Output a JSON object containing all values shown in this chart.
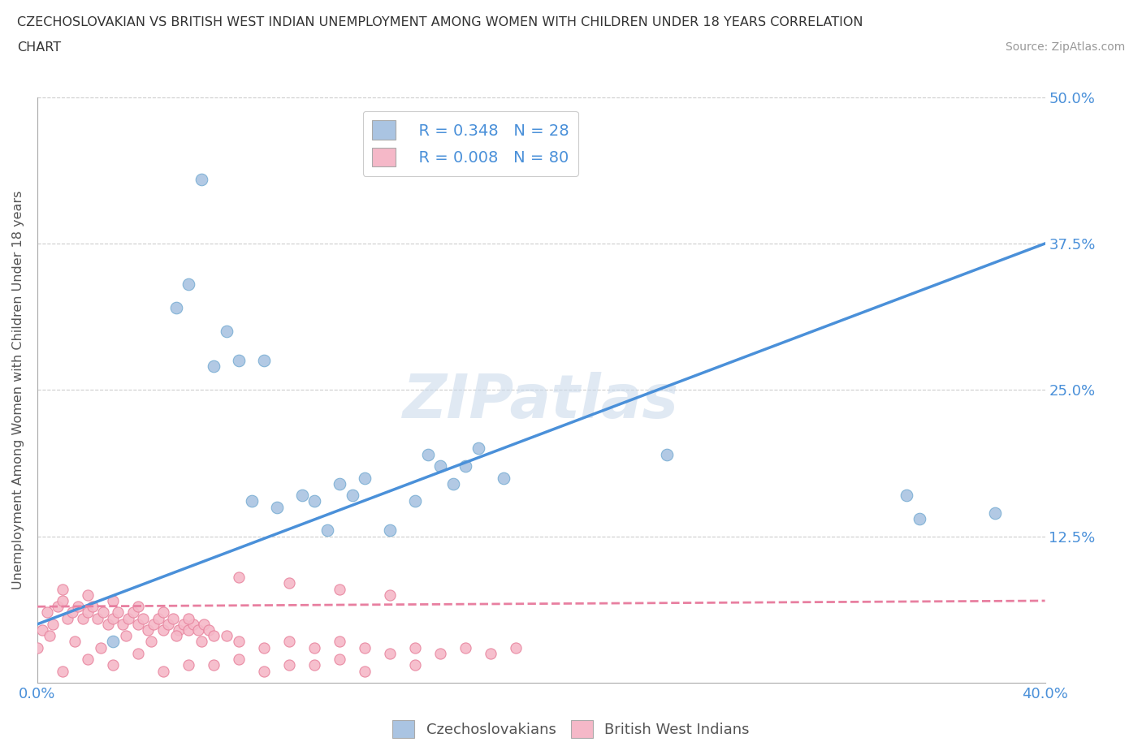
{
  "title_line1": "CZECHOSLOVAKIAN VS BRITISH WEST INDIAN UNEMPLOYMENT AMONG WOMEN WITH CHILDREN UNDER 18 YEARS CORRELATION",
  "title_line2": "CHART",
  "source": "Source: ZipAtlas.com",
  "ylabel": "Unemployment Among Women with Children Under 18 years",
  "xmin": 0.0,
  "xmax": 0.4,
  "ymin": 0.0,
  "ymax": 0.5,
  "yticks": [
    0.0,
    0.125,
    0.25,
    0.375,
    0.5
  ],
  "ytick_labels": [
    "",
    "12.5%",
    "25.0%",
    "37.5%",
    "50.0%"
  ],
  "xticks": [
    0.0,
    0.1,
    0.2,
    0.3,
    0.4
  ],
  "xtick_labels": [
    "0.0%",
    "",
    "",
    "",
    "40.0%"
  ],
  "legend_R1": "R = 0.348",
  "legend_N1": "N = 28",
  "legend_R2": "R = 0.008",
  "legend_N2": "N = 80",
  "watermark": "ZIPatlas",
  "blue_color": "#aac4e2",
  "blue_edge": "#7bafd4",
  "pink_color": "#f5b8c8",
  "pink_edge": "#e8849e",
  "line_blue": "#4a90d9",
  "line_pink": "#e87fa0",
  "tick_color": "#4a90d9",
  "czecho_x": [
    0.03,
    0.065,
    0.075,
    0.085,
    0.095,
    0.105,
    0.11,
    0.115,
    0.12,
    0.125,
    0.13,
    0.14,
    0.15,
    0.155,
    0.16,
    0.165,
    0.17,
    0.175,
    0.055,
    0.06,
    0.07,
    0.08,
    0.09,
    0.185,
    0.25,
    0.345,
    0.35,
    0.38
  ],
  "czecho_y": [
    0.035,
    0.43,
    0.3,
    0.155,
    0.15,
    0.16,
    0.155,
    0.13,
    0.17,
    0.16,
    0.175,
    0.13,
    0.155,
    0.195,
    0.185,
    0.17,
    0.185,
    0.2,
    0.32,
    0.34,
    0.27,
    0.275,
    0.275,
    0.175,
    0.195,
    0.16,
    0.14,
    0.145
  ],
  "bwi_x": [
    0.0,
    0.002,
    0.004,
    0.006,
    0.008,
    0.01,
    0.012,
    0.014,
    0.016,
    0.018,
    0.02,
    0.022,
    0.024,
    0.026,
    0.028,
    0.03,
    0.032,
    0.034,
    0.036,
    0.038,
    0.04,
    0.042,
    0.044,
    0.046,
    0.048,
    0.05,
    0.052,
    0.054,
    0.056,
    0.058,
    0.06,
    0.062,
    0.064,
    0.066,
    0.068,
    0.07,
    0.01,
    0.02,
    0.03,
    0.04,
    0.05,
    0.06,
    0.005,
    0.015,
    0.025,
    0.035,
    0.045,
    0.055,
    0.065,
    0.075,
    0.08,
    0.09,
    0.1,
    0.11,
    0.12,
    0.13,
    0.14,
    0.15,
    0.16,
    0.17,
    0.18,
    0.19,
    0.08,
    0.1,
    0.12,
    0.14,
    0.02,
    0.04,
    0.06,
    0.08,
    0.1,
    0.12,
    0.01,
    0.03,
    0.05,
    0.07,
    0.09,
    0.11,
    0.13,
    0.15
  ],
  "bwi_y": [
    0.03,
    0.045,
    0.06,
    0.05,
    0.065,
    0.07,
    0.055,
    0.06,
    0.065,
    0.055,
    0.06,
    0.065,
    0.055,
    0.06,
    0.05,
    0.055,
    0.06,
    0.05,
    0.055,
    0.06,
    0.05,
    0.055,
    0.045,
    0.05,
    0.055,
    0.045,
    0.05,
    0.055,
    0.045,
    0.05,
    0.045,
    0.05,
    0.045,
    0.05,
    0.045,
    0.04,
    0.08,
    0.075,
    0.07,
    0.065,
    0.06,
    0.055,
    0.04,
    0.035,
    0.03,
    0.04,
    0.035,
    0.04,
    0.035,
    0.04,
    0.035,
    0.03,
    0.035,
    0.03,
    0.035,
    0.03,
    0.025,
    0.03,
    0.025,
    0.03,
    0.025,
    0.03,
    0.09,
    0.085,
    0.08,
    0.075,
    0.02,
    0.025,
    0.015,
    0.02,
    0.015,
    0.02,
    0.01,
    0.015,
    0.01,
    0.015,
    0.01,
    0.015,
    0.01,
    0.015
  ]
}
